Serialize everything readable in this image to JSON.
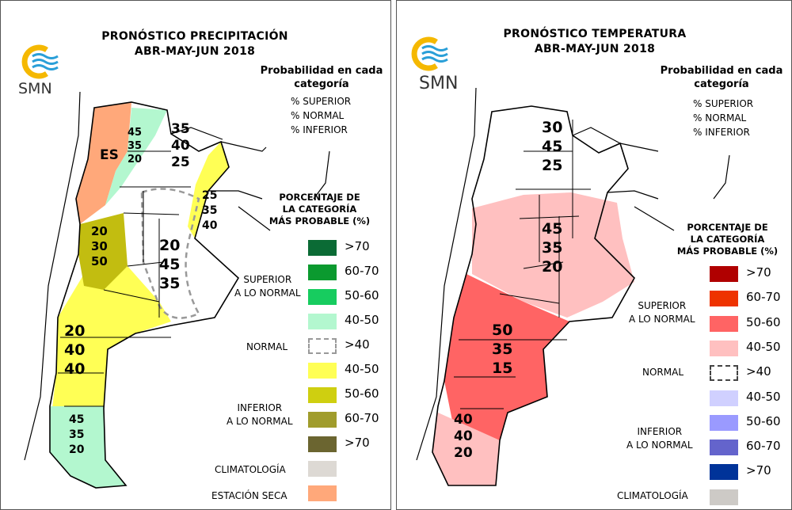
{
  "left": {
    "title_line1": "PRONÓSTICO PRECIPITACIÓN",
    "title_line2": "ABR-MAY-JUN 2018",
    "logo": "SMN",
    "prob_line1": "Probabilidad en cada",
    "prob_line2": "categoría",
    "cat_superior": "% SUPERIOR",
    "cat_normal": "% NORMAL",
    "cat_inferior": "% INFERIOR",
    "pct_title1": "PORCENTAJE DE",
    "pct_title2": "LA CATEGORÍA",
    "pct_title3": "MÁS PROBABLE (%)",
    "group_superior1": "SUPERIOR",
    "group_superior2": "A LO NORMAL",
    "group_normal": "NORMAL",
    "group_inferior1": "INFERIOR",
    "group_inferior2": "A LO NORMAL",
    "climatologia": "CLIMATOLOGÍA",
    "estacion_seca": "ESTACIÓN SECA",
    "legend": [
      {
        "label": ">70",
        "color": "#0b6b35"
      },
      {
        "label": "60-70",
        "color": "#0b9a2f"
      },
      {
        "label": "50-60",
        "color": "#17cc5f"
      },
      {
        "label": "40-50",
        "color": "#b3f7cf"
      },
      {
        "label": ">40",
        "color": "dashed-gray"
      },
      {
        "label": "40-50",
        "color": "#ffff55"
      },
      {
        "label": "50-60",
        "color": "#cfcf10"
      },
      {
        "label": "60-70",
        "color": "#a09c2c"
      },
      {
        "label": ">70",
        "color": "#6b6530"
      }
    ],
    "climatologia_color": "#ddd9d4",
    "estacion_seca_color": "#ffa87a",
    "regions": [
      {
        "values": [
          "45",
          "35",
          "20"
        ]
      },
      {
        "values": [
          "ES"
        ]
      },
      {
        "values": [
          "35",
          "40",
          "25"
        ]
      },
      {
        "values": [
          "25",
          "35",
          "40"
        ]
      },
      {
        "values": [
          "20",
          "30",
          "50"
        ]
      },
      {
        "values": [
          "20",
          "45",
          "35"
        ]
      },
      {
        "values": [
          "20",
          "40",
          "40"
        ]
      },
      {
        "values": [
          "45",
          "35",
          "20"
        ]
      }
    ]
  },
  "right": {
    "title_line1": "PRONÓSTICO TEMPERATURA",
    "title_line2": "ABR-MAY-JUN 2018",
    "logo": "SMN",
    "prob_line1": "Probabilidad en cada",
    "prob_line2": "categoría",
    "cat_superior": "% SUPERIOR",
    "cat_normal": "% NORMAL",
    "cat_inferior": "% INFERIOR",
    "pct_title1": "PORCENTAJE DE",
    "pct_title2": "LA CATEGORÍA",
    "pct_title3": "MÁS PROBABLE (%)",
    "group_superior1": "SUPERIOR",
    "group_superior2": "A LO NORMAL",
    "group_normal": "NORMAL",
    "group_inferior1": "INFERIOR",
    "group_inferior2": "A LO NORMAL",
    "climatologia": "CLIMATOLOGÍA",
    "legend": [
      {
        "label": ">70",
        "color": "#b00000"
      },
      {
        "label": "60-70",
        "color": "#ee3300"
      },
      {
        "label": "50-60",
        "color": "#ff6464"
      },
      {
        "label": "40-50",
        "color": "#ffc0c0"
      },
      {
        "label": ">40",
        "color": "dashed-dark"
      },
      {
        "label": "40-50",
        "color": "#d0d0ff"
      },
      {
        "label": "50-60",
        "color": "#9a9aff"
      },
      {
        "label": "60-70",
        "color": "#6464cc"
      },
      {
        "label": ">70",
        "color": "#003399"
      }
    ],
    "climatologia_color": "#cdcac6",
    "regions": [
      {
        "values": [
          "30",
          "45",
          "25"
        ]
      },
      {
        "values": [
          "45",
          "35",
          "20"
        ]
      },
      {
        "values": [
          "50",
          "35",
          "15"
        ]
      },
      {
        "values": [
          "40",
          "40",
          "20"
        ]
      }
    ]
  }
}
